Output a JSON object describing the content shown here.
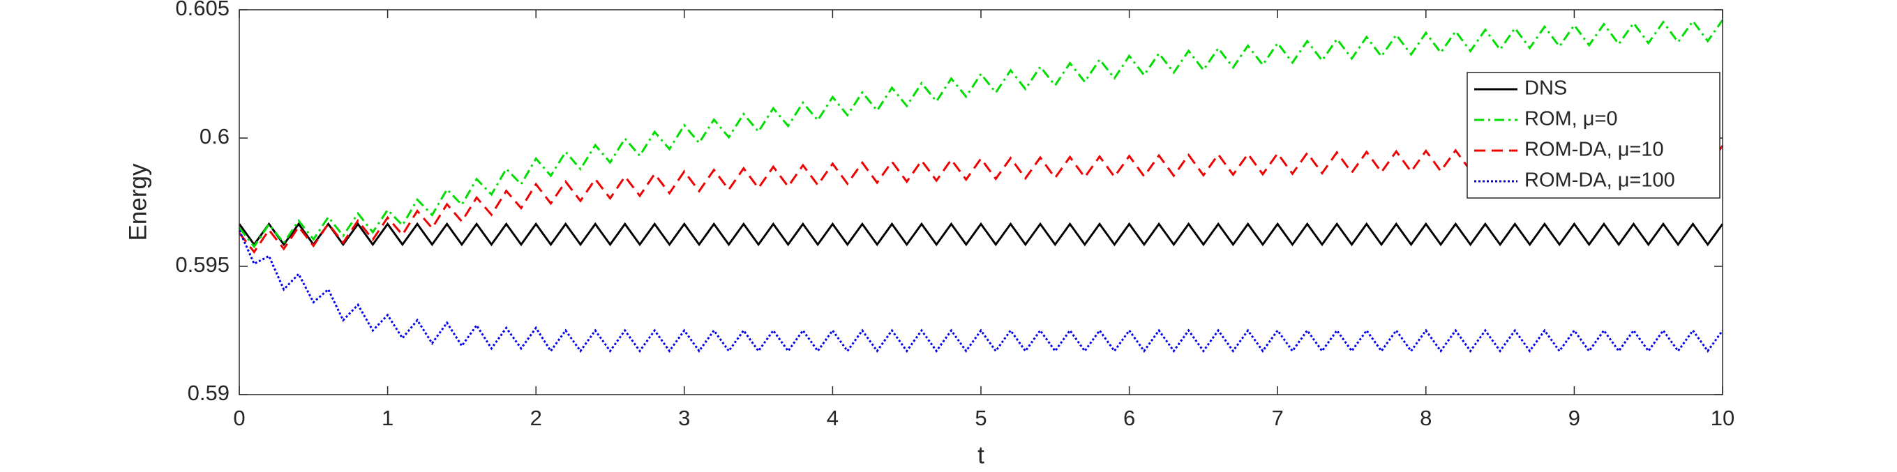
{
  "chart_data": {
    "type": "line",
    "xlabel": "t",
    "ylabel": "Energy",
    "x": [
      0,
      0.1,
      0.2,
      0.3,
      0.4,
      0.5,
      0.6,
      0.7,
      0.8,
      0.9,
      1,
      1.1,
      1.2,
      1.3,
      1.4,
      1.5,
      1.6,
      1.7,
      1.8,
      1.9,
      2,
      2.1,
      2.2,
      2.3,
      2.4,
      2.5,
      2.6,
      2.7,
      2.8,
      2.9,
      3,
      3.1,
      3.2,
      3.3,
      3.4,
      3.5,
      3.6,
      3.7,
      3.8,
      3.9,
      4,
      4.1,
      4.2,
      4.3,
      4.4,
      4.5,
      4.6,
      4.7,
      4.8,
      4.9,
      5,
      5.1,
      5.2,
      5.3,
      5.4,
      5.5,
      5.6,
      5.7,
      5.8,
      5.9,
      6,
      6.1,
      6.2,
      6.3,
      6.4,
      6.5,
      6.6,
      6.7,
      6.8,
      6.9,
      7,
      7.1,
      7.2,
      7.3,
      7.4,
      7.5,
      7.6,
      7.7,
      7.8,
      7.9,
      8,
      8.1,
      8.2,
      8.3,
      8.4,
      8.5,
      8.6,
      8.7,
      8.8,
      8.9,
      9,
      9.1,
      9.2,
      9.3,
      9.4,
      9.5,
      9.6,
      9.7,
      9.8,
      9.9,
      10
    ],
    "series": [
      {
        "name": "DNS",
        "color": "#000000",
        "dash": "solid",
        "values": [
          0.59665,
          0.59585,
          0.59665,
          0.59585,
          0.59665,
          0.59585,
          0.59665,
          0.59585,
          0.59665,
          0.59585,
          0.59665,
          0.59585,
          0.59665,
          0.59585,
          0.59665,
          0.59585,
          0.59665,
          0.59585,
          0.59665,
          0.59585,
          0.59665,
          0.59585,
          0.59665,
          0.59585,
          0.59665,
          0.59585,
          0.59665,
          0.59585,
          0.59665,
          0.59585,
          0.59665,
          0.59585,
          0.59665,
          0.59585,
          0.59665,
          0.59585,
          0.59665,
          0.59585,
          0.59665,
          0.59585,
          0.59665,
          0.59585,
          0.59665,
          0.59585,
          0.59665,
          0.59585,
          0.59665,
          0.59585,
          0.59665,
          0.59585,
          0.59665,
          0.59585,
          0.59665,
          0.59585,
          0.59665,
          0.59585,
          0.59665,
          0.59585,
          0.59665,
          0.59585,
          0.59665,
          0.59585,
          0.59665,
          0.59585,
          0.59665,
          0.59585,
          0.59665,
          0.59585,
          0.59665,
          0.59585,
          0.59665,
          0.59585,
          0.59665,
          0.59585,
          0.59665,
          0.59585,
          0.59665,
          0.59585,
          0.59665,
          0.59585,
          0.59665,
          0.59585,
          0.59665,
          0.59585,
          0.59665,
          0.59585,
          0.59665,
          0.59585,
          0.59665,
          0.59585,
          0.59665,
          0.59585,
          0.59665,
          0.59585,
          0.59665,
          0.59585,
          0.59665,
          0.59585,
          0.59665,
          0.59585,
          0.59665
        ]
      },
      {
        "name": "ROM, μ=0",
        "color": "#00dd00",
        "dash": "dashdot",
        "values": [
          0.5965,
          0.59577,
          0.59664,
          0.59591,
          0.59678,
          0.59605,
          0.59692,
          0.59619,
          0.59706,
          0.59633,
          0.5972,
          0.5966,
          0.5976,
          0.597,
          0.598,
          0.5974,
          0.5984,
          0.5978,
          0.5988,
          0.5982,
          0.5992,
          0.59853,
          0.59946,
          0.59879,
          0.59972,
          0.59905,
          0.59998,
          0.59931,
          0.60024,
          0.59957,
          0.6005,
          0.59981,
          0.60072,
          0.60003,
          0.60094,
          0.60025,
          0.60116,
          0.60047,
          0.60138,
          0.60069,
          0.6016,
          0.60089,
          0.60178,
          0.60107,
          0.60196,
          0.60125,
          0.60214,
          0.60143,
          0.60232,
          0.60161,
          0.6025,
          0.60177,
          0.60264,
          0.60191,
          0.60278,
          0.60205,
          0.60292,
          0.60219,
          0.60306,
          0.60233,
          0.6032,
          0.60245,
          0.6033,
          0.60255,
          0.6034,
          0.60265,
          0.6035,
          0.60275,
          0.6036,
          0.60285,
          0.6037,
          0.60294,
          0.60378,
          0.60302,
          0.60386,
          0.6031,
          0.60394,
          0.60318,
          0.60402,
          0.60326,
          0.6041,
          0.60333,
          0.60416,
          0.60339,
          0.60422,
          0.60345,
          0.60428,
          0.60351,
          0.60434,
          0.60357,
          0.6044,
          0.60362,
          0.60444,
          0.60366,
          0.60448,
          0.6037,
          0.60452,
          0.60374,
          0.60456,
          0.60378,
          0.6046
        ]
      },
      {
        "name": "ROM-DA, μ=10",
        "color": "#ee0000",
        "dash": "dashed",
        "values": [
          0.5963,
          0.59556,
          0.59642,
          0.59568,
          0.59654,
          0.5958,
          0.59666,
          0.59592,
          0.59678,
          0.59604,
          0.5969,
          0.59623,
          0.59716,
          0.59649,
          0.59742,
          0.59675,
          0.59768,
          0.59701,
          0.59794,
          0.59727,
          0.5982,
          0.59745,
          0.5983,
          0.59755,
          0.5984,
          0.59765,
          0.5985,
          0.59775,
          0.5986,
          0.59785,
          0.5987,
          0.59793,
          0.59876,
          0.59799,
          0.59882,
          0.59805,
          0.59888,
          0.59811,
          0.59894,
          0.59817,
          0.599,
          0.59822,
          0.59904,
          0.59826,
          0.59908,
          0.5983,
          0.59912,
          0.59834,
          0.59916,
          0.59838,
          0.5992,
          0.59841,
          0.59922,
          0.59843,
          0.59924,
          0.59845,
          0.59926,
          0.59847,
          0.59928,
          0.59849,
          0.5993,
          0.59851,
          0.59932,
          0.59853,
          0.59934,
          0.59855,
          0.59936,
          0.59857,
          0.59938,
          0.59859,
          0.5994,
          0.59861,
          0.59942,
          0.59863,
          0.59944,
          0.59865,
          0.59946,
          0.59867,
          0.59948,
          0.59869,
          0.5995,
          0.59871,
          0.59952,
          0.59873,
          0.59954,
          0.59875,
          0.59956,
          0.59877,
          0.59958,
          0.59879,
          0.5996,
          0.59881,
          0.59962,
          0.59883,
          0.59964,
          0.59885,
          0.59966,
          0.59887,
          0.59968,
          0.59889,
          0.5997
        ]
      },
      {
        "name": "ROM-DA, μ=100",
        "color": "#0000ee",
        "dash": "dotted",
        "values": [
          0.5964,
          0.5951,
          0.5954,
          0.5941,
          0.5947,
          0.5936,
          0.5941,
          0.5929,
          0.5935,
          0.5925,
          0.5931,
          0.5922,
          0.5929,
          0.592,
          0.5928,
          0.5919,
          0.5927,
          0.5918,
          0.5926,
          0.5918,
          0.5926,
          0.5917,
          0.5925,
          0.5917,
          0.5925,
          0.5917,
          0.5925,
          0.5917,
          0.5925,
          0.5917,
          0.5925,
          0.5917,
          0.5925,
          0.5917,
          0.5925,
          0.5917,
          0.5925,
          0.5917,
          0.5925,
          0.5917,
          0.5925,
          0.5917,
          0.5925,
          0.5917,
          0.5925,
          0.5917,
          0.5925,
          0.5917,
          0.5925,
          0.5917,
          0.5925,
          0.5917,
          0.5925,
          0.5917,
          0.5925,
          0.5917,
          0.5925,
          0.5917,
          0.5925,
          0.5917,
          0.5925,
          0.5917,
          0.5925,
          0.5917,
          0.5925,
          0.5917,
          0.5925,
          0.5917,
          0.5925,
          0.5917,
          0.5925,
          0.5917,
          0.5925,
          0.5917,
          0.5925,
          0.5917,
          0.5925,
          0.5917,
          0.5925,
          0.5917,
          0.5925,
          0.5917,
          0.5925,
          0.5917,
          0.5925,
          0.5917,
          0.5925,
          0.5917,
          0.5925,
          0.5917,
          0.5925,
          0.5917,
          0.5925,
          0.5917,
          0.5925,
          0.5917,
          0.5925,
          0.5917,
          0.5925,
          0.5917,
          0.5925
        ]
      }
    ],
    "xlim": [
      0,
      10
    ],
    "xticks": [
      0,
      1,
      2,
      3,
      4,
      5,
      6,
      7,
      8,
      9,
      10
    ],
    "ylim": [
      0.59,
      0.605
    ],
    "yticks": [
      0.59,
      0.595,
      0.6,
      0.605
    ],
    "grid": false,
    "legend": "upper right"
  }
}
